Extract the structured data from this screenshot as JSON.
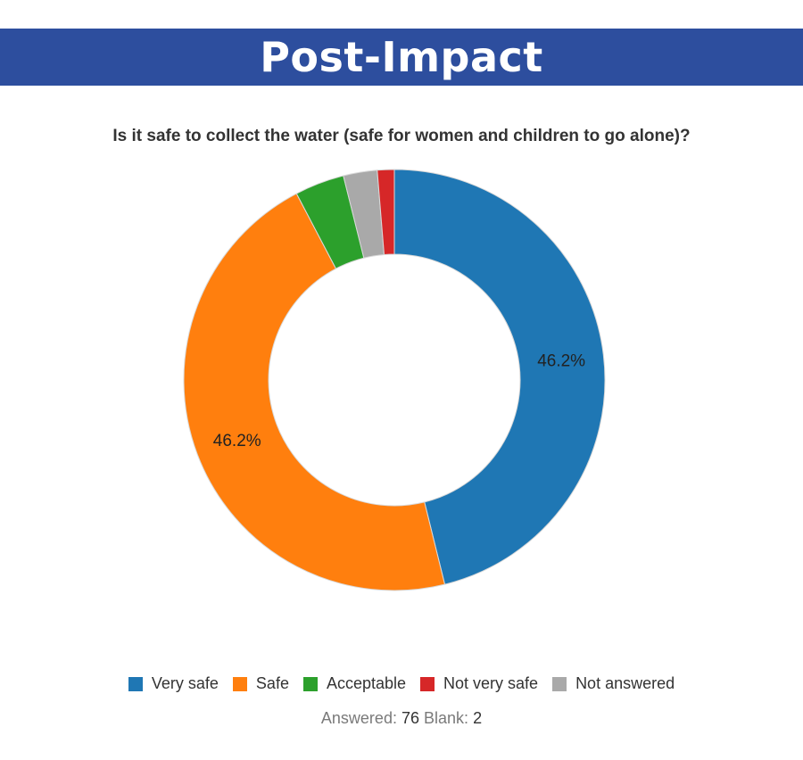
{
  "banner": {
    "title": "Post-Impact"
  },
  "chart_data": {
    "type": "pie",
    "subtype": "donut",
    "title": "Is it safe to collect the water (safe for women and children to go alone)?",
    "categories": [
      "Very safe",
      "Safe",
      "Acceptable",
      "Not very safe",
      "Not answered"
    ],
    "values": [
      46.2,
      46.2,
      3.8,
      1.3,
      2.6
    ],
    "units": "%",
    "colors": [
      "#1f77b4",
      "#ff7f0e",
      "#2ca02c",
      "#d62728",
      "#a9a9a9"
    ],
    "slice_order": [
      0,
      1,
      2,
      4,
      3
    ],
    "data_labels": [
      "46.2%",
      "46.2%",
      "",
      "",
      ""
    ],
    "legend_position": "bottom"
  },
  "summary": {
    "answered_label": "Answered:",
    "answered_value": "76",
    "blank_label": "Blank:",
    "blank_value": "2"
  }
}
